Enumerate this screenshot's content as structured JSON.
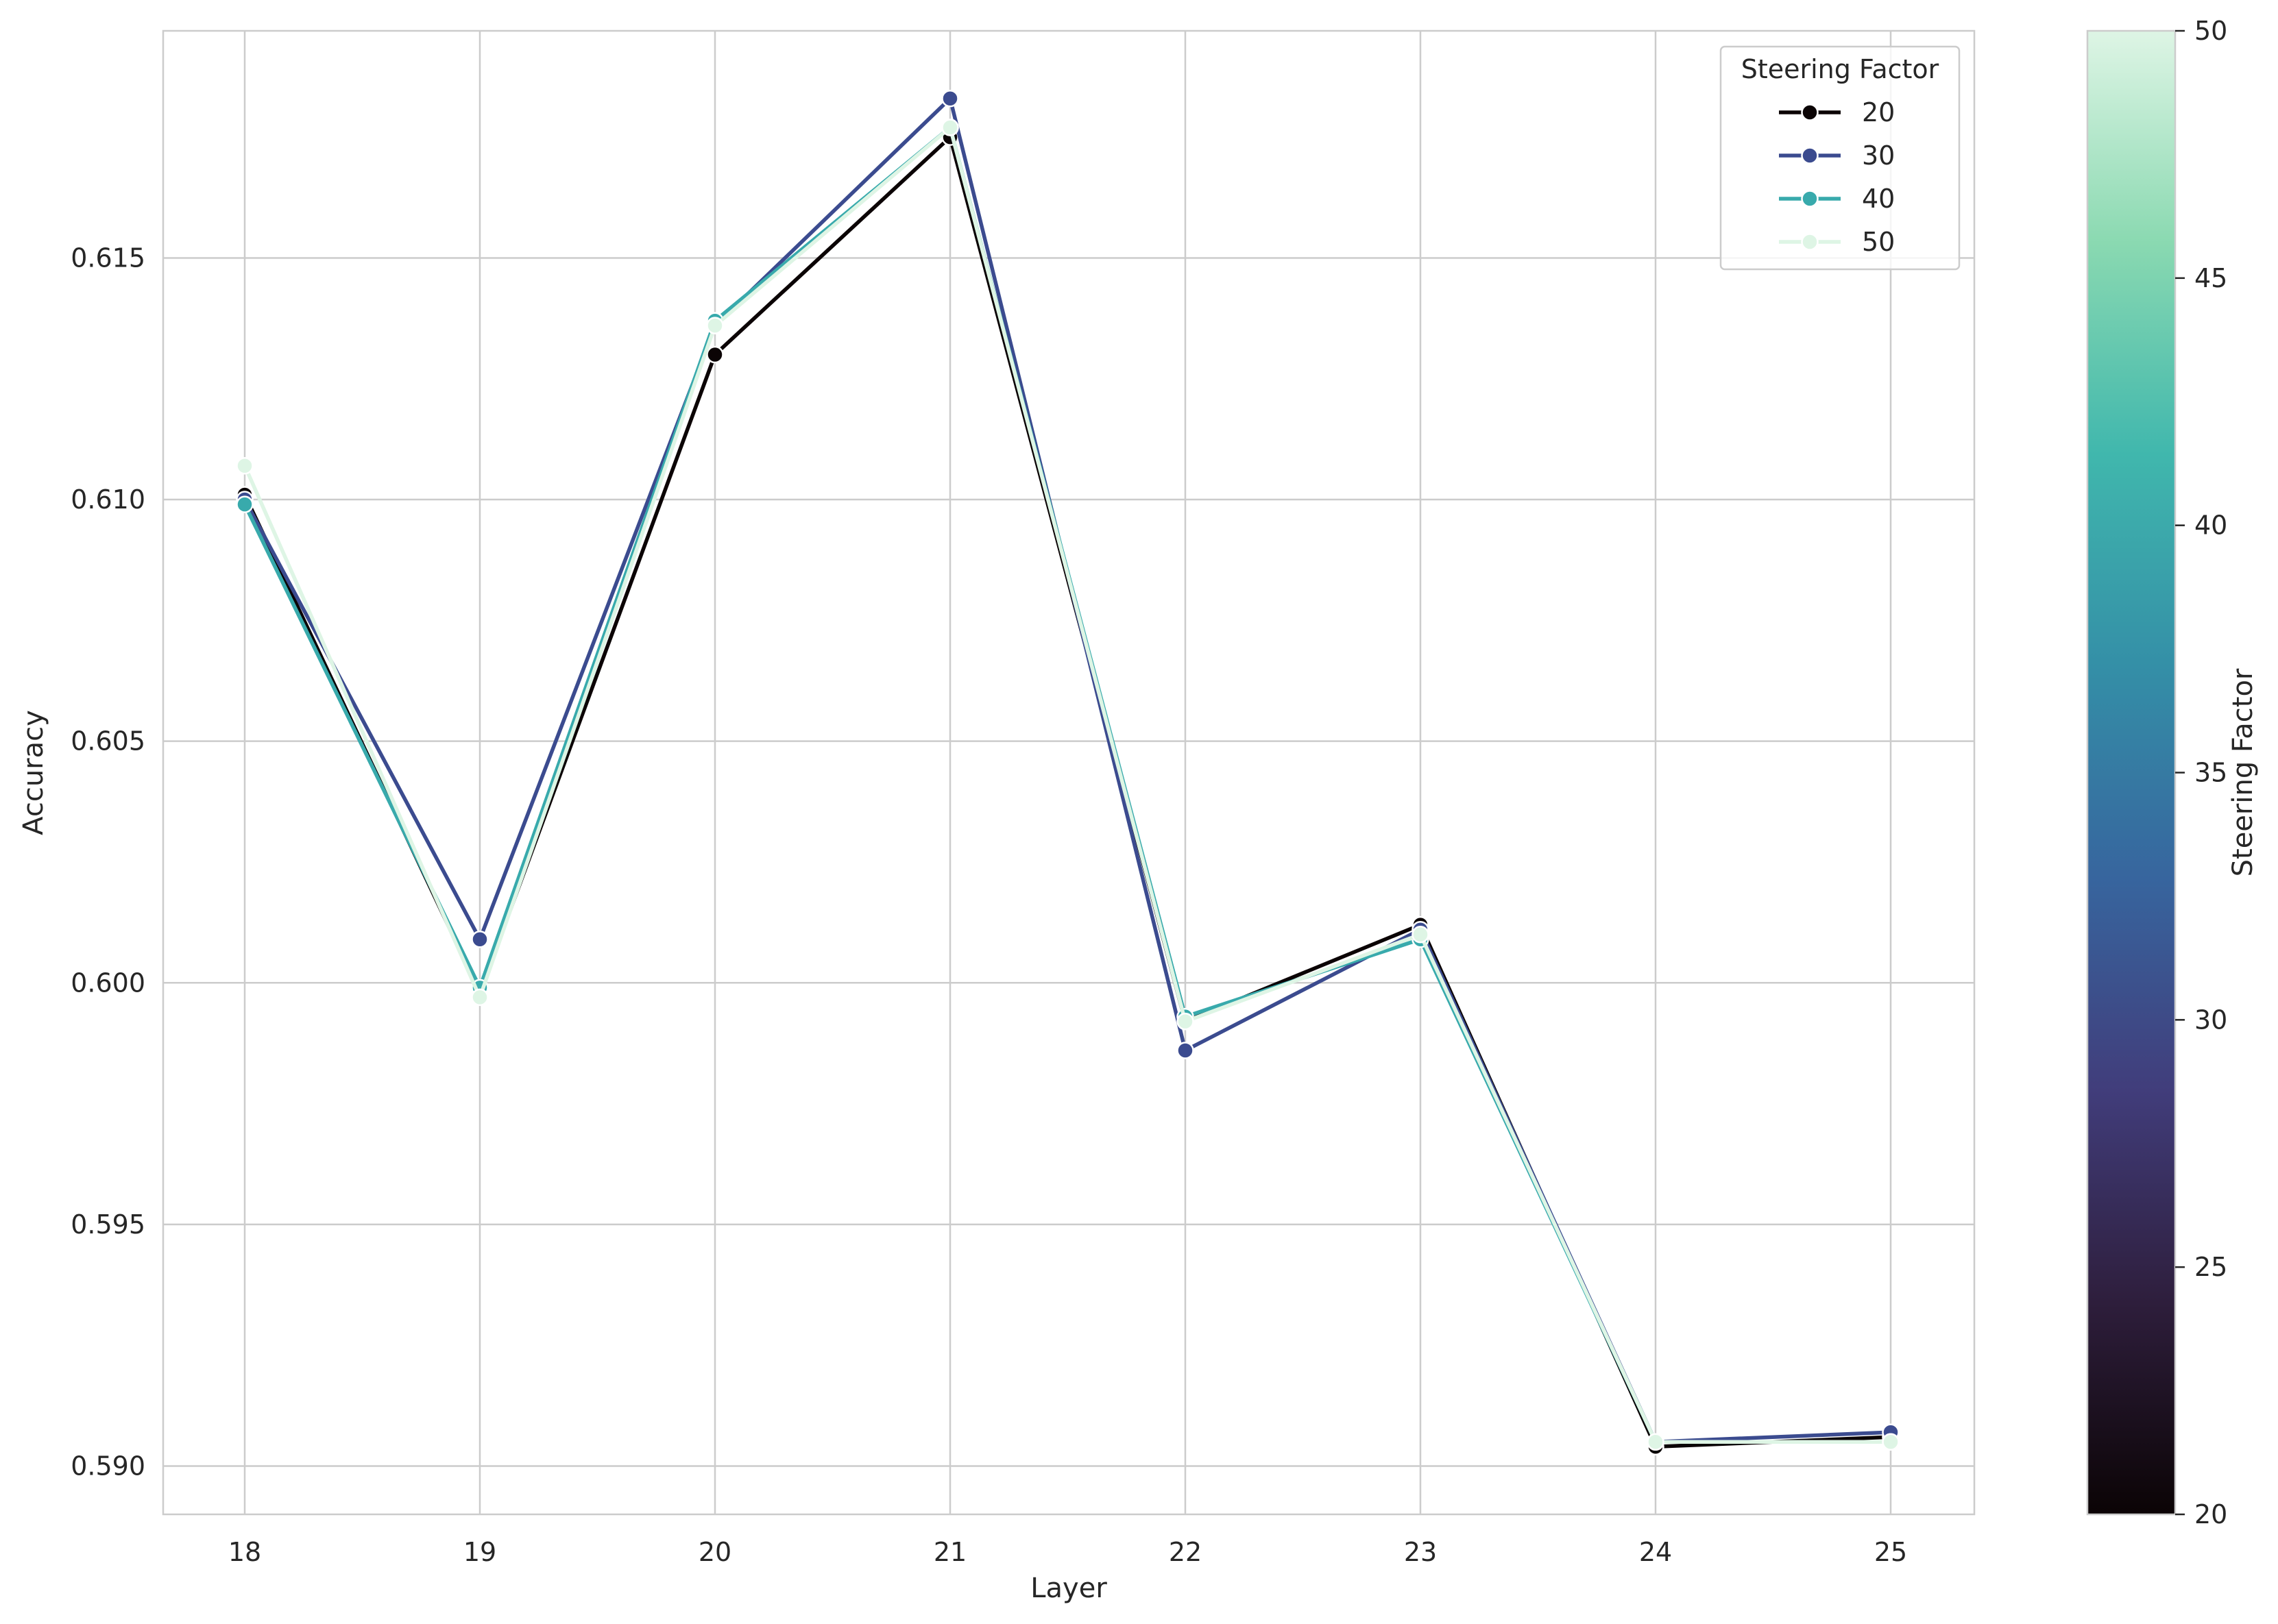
{
  "chart_data": {
    "type": "line",
    "title": "",
    "xlabel": "Layer",
    "ylabel": "Accuracy",
    "categories": [
      18,
      19,
      20,
      21,
      22,
      23,
      24,
      25
    ],
    "xticks": [
      "18",
      "19",
      "20",
      "21",
      "22",
      "23",
      "24",
      "25"
    ],
    "ylim": [
      0.589,
      0.6197
    ],
    "yticks": [
      "0.590",
      "0.595",
      "0.600",
      "0.605",
      "0.610",
      "0.615"
    ],
    "grid": true,
    "legend": {
      "title": "Steering Factor",
      "placement": "upper-right"
    },
    "series": [
      {
        "name": "20",
        "color": "#0b0405",
        "values": [
          0.6101,
          0.5998,
          0.613,
          0.6175,
          0.5992,
          0.6012,
          0.5904,
          0.5906
        ]
      },
      {
        "name": "30",
        "color": "#3b4b8f",
        "values": [
          0.61,
          0.6009,
          0.6136,
          0.6183,
          0.5986,
          0.6011,
          0.5905,
          0.5907
        ]
      },
      {
        "name": "40",
        "color": "#38aaac",
        "values": [
          0.6099,
          0.5999,
          0.6137,
          0.6177,
          0.5993,
          0.6009,
          0.5905,
          0.5905
        ]
      },
      {
        "name": "50",
        "color": "#def5e5",
        "values": [
          0.6107,
          0.5997,
          0.6136,
          0.6177,
          0.5992,
          0.601,
          0.5905,
          0.5905
        ]
      }
    ],
    "colorbar": {
      "label": "Steering Factor",
      "range": [
        20,
        50
      ],
      "ticks": [
        "20",
        "25",
        "30",
        "35",
        "40",
        "45",
        "50"
      ],
      "colormap": "mako",
      "stops": [
        "#0b0405",
        "#2e1e3c",
        "#413d7b",
        "#37659e",
        "#348fa7",
        "#40b7ad",
        "#8ad9b1",
        "#def5e5"
      ]
    }
  }
}
